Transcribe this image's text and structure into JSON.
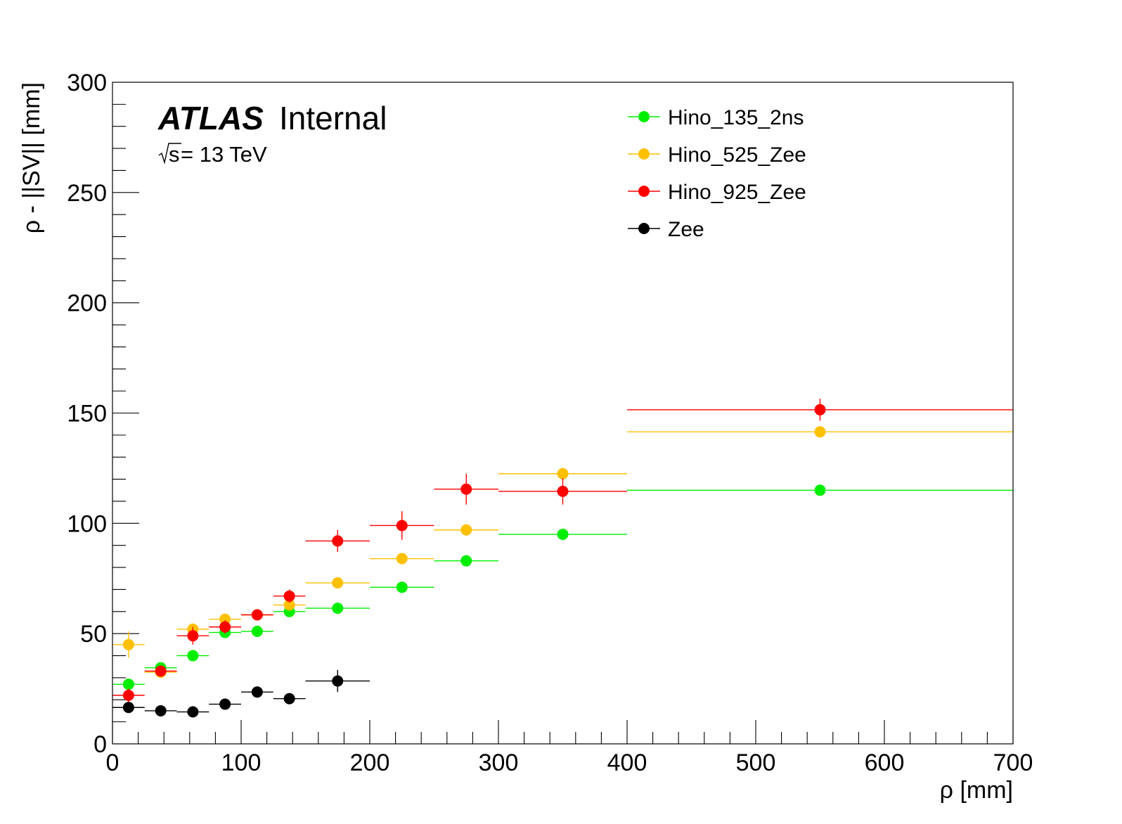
{
  "chart_data": {
    "type": "scatter",
    "experiment_label": "ATLAS",
    "status_label": "Internal",
    "energy_label_root": "s",
    "energy_label_rest": " = 13 TeV",
    "xlabel": "ρ [mm]",
    "ylabel": "ρ - ||SV|| [mm]",
    "xlim": [
      0,
      700
    ],
    "ylim": [
      0,
      300
    ],
    "x_ticks": [
      0,
      100,
      200,
      300,
      400,
      500,
      600,
      700
    ],
    "y_ticks": [
      0,
      50,
      100,
      150,
      200,
      250,
      300
    ],
    "grid": false,
    "legend_position": "top-right",
    "series": [
      {
        "name": "Hino_135_2ns",
        "color": "#00ee00",
        "points": [
          {
            "x": 12.5,
            "xlo": 0,
            "xhi": 25,
            "y": 27,
            "yerr": 2
          },
          {
            "x": 37.5,
            "xlo": 25,
            "xhi": 50,
            "y": 34.5,
            "yerr": 1.5
          },
          {
            "x": 62.5,
            "xlo": 50,
            "xhi": 75,
            "y": 40,
            "yerr": 1.5
          },
          {
            "x": 87.5,
            "xlo": 75,
            "xhi": 100,
            "y": 50.5,
            "yerr": 1.5
          },
          {
            "x": 112.5,
            "xlo": 100,
            "xhi": 125,
            "y": 51,
            "yerr": 1.5
          },
          {
            "x": 137.5,
            "xlo": 125,
            "xhi": 150,
            "y": 60,
            "yerr": 1.5
          },
          {
            "x": 175,
            "xlo": 150,
            "xhi": 200,
            "y": 61.5,
            "yerr": 1.5
          },
          {
            "x": 225,
            "xlo": 200,
            "xhi": 250,
            "y": 71,
            "yerr": 1.5
          },
          {
            "x": 275,
            "xlo": 250,
            "xhi": 300,
            "y": 83,
            "yerr": 1.5
          },
          {
            "x": 350,
            "xlo": 300,
            "xhi": 400,
            "y": 95,
            "yerr": 1.5
          },
          {
            "x": 550,
            "xlo": 400,
            "xhi": 700,
            "y": 115,
            "yerr": 1.5
          }
        ]
      },
      {
        "name": "Hino_525_Zee",
        "color": "#ffc000",
        "points": [
          {
            "x": 12.5,
            "xlo": 0,
            "xhi": 25,
            "y": 45,
            "yerr": 6
          },
          {
            "x": 37.5,
            "xlo": 25,
            "xhi": 50,
            "y": 32.5,
            "yerr": 2
          },
          {
            "x": 62.5,
            "xlo": 50,
            "xhi": 75,
            "y": 52,
            "yerr": 2
          },
          {
            "x": 87.5,
            "xlo": 75,
            "xhi": 100,
            "y": 56.5,
            "yerr": 2
          },
          {
            "x": 112.5,
            "xlo": 100,
            "xhi": 125,
            "y": 58.5,
            "yerr": 2
          },
          {
            "x": 137.5,
            "xlo": 125,
            "xhi": 150,
            "y": 63,
            "yerr": 2
          },
          {
            "x": 175,
            "xlo": 150,
            "xhi": 200,
            "y": 73,
            "yerr": 2
          },
          {
            "x": 225,
            "xlo": 200,
            "xhi": 250,
            "y": 84,
            "yerr": 2
          },
          {
            "x": 275,
            "xlo": 250,
            "xhi": 300,
            "y": 97,
            "yerr": 2
          },
          {
            "x": 350,
            "xlo": 300,
            "xhi": 400,
            "y": 122.5,
            "yerr": 2
          },
          {
            "x": 550,
            "xlo": 400,
            "xhi": 700,
            "y": 141.5,
            "yerr": 2
          }
        ]
      },
      {
        "name": "Hino_925_Zee",
        "color": "#ff0000",
        "points": [
          {
            "x": 12.5,
            "xlo": 0,
            "xhi": 25,
            "y": 22,
            "yerr": 3
          },
          {
            "x": 37.5,
            "xlo": 25,
            "xhi": 50,
            "y": 33,
            "yerr": 2
          },
          {
            "x": 62.5,
            "xlo": 50,
            "xhi": 75,
            "y": 49,
            "yerr": 4
          },
          {
            "x": 87.5,
            "xlo": 75,
            "xhi": 100,
            "y": 53,
            "yerr": 3
          },
          {
            "x": 112.5,
            "xlo": 100,
            "xhi": 125,
            "y": 58.5,
            "yerr": 2
          },
          {
            "x": 137.5,
            "xlo": 125,
            "xhi": 150,
            "y": 67,
            "yerr": 3
          },
          {
            "x": 175,
            "xlo": 150,
            "xhi": 200,
            "y": 92,
            "yerr": 5
          },
          {
            "x": 225,
            "xlo": 200,
            "xhi": 250,
            "y": 99,
            "yerr": 6.5
          },
          {
            "x": 275,
            "xlo": 250,
            "xhi": 300,
            "y": 115.5,
            "yerr": 7
          },
          {
            "x": 350,
            "xlo": 300,
            "xhi": 400,
            "y": 114.5,
            "yerr": 6
          },
          {
            "x": 550,
            "xlo": 400,
            "xhi": 700,
            "y": 151.5,
            "yerr": 5
          }
        ]
      },
      {
        "name": "Zee",
        "color": "#000000",
        "points": [
          {
            "x": 12.5,
            "xlo": 0,
            "xhi": 25,
            "y": 16.5,
            "yerr": 2
          },
          {
            "x": 37.5,
            "xlo": 25,
            "xhi": 50,
            "y": 15,
            "yerr": 1.5
          },
          {
            "x": 62.5,
            "xlo": 50,
            "xhi": 75,
            "y": 14.5,
            "yerr": 1.5
          },
          {
            "x": 87.5,
            "xlo": 75,
            "xhi": 100,
            "y": 18,
            "yerr": 1.5
          },
          {
            "x": 112.5,
            "xlo": 100,
            "xhi": 125,
            "y": 23.5,
            "yerr": 2
          },
          {
            "x": 137.5,
            "xlo": 125,
            "xhi": 150,
            "y": 20.5,
            "yerr": 2
          },
          {
            "x": 175,
            "xlo": 150,
            "xhi": 200,
            "y": 28.5,
            "yerr": 5
          }
        ]
      }
    ]
  }
}
